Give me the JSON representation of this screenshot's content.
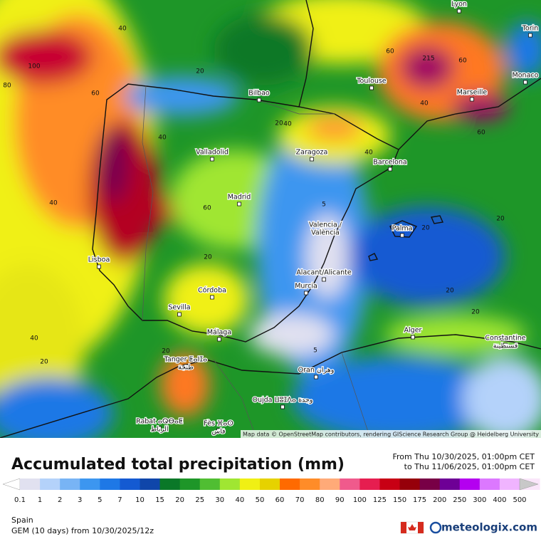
{
  "map": {
    "attribution": "Map data © OpenStreetMap contributors, rendering GIScience Research Group @ Heidelberg University",
    "cities": [
      {
        "lines": [
          "Lyon"
        ]
      },
      {
        "lines": [
          "Torin"
        ]
      },
      {
        "lines": [
          "Toulouse"
        ]
      },
      {
        "lines": [
          "Monaco"
        ]
      },
      {
        "lines": [
          "Bilbao"
        ]
      },
      {
        "lines": [
          "Marseille"
        ]
      },
      {
        "lines": [
          "Zaragoza"
        ]
      },
      {
        "lines": [
          "Barcelona"
        ]
      },
      {
        "lines": [
          "Valladolid"
        ]
      },
      {
        "lines": [
          "Madrid"
        ]
      },
      {
        "lines": [
          "Valencia /",
          "València"
        ]
      },
      {
        "lines": [
          "Palma"
        ]
      },
      {
        "lines": [
          "Lisboa"
        ]
      },
      {
        "lines": [
          "Alacant/Alicante"
        ]
      },
      {
        "lines": [
          "Murcia"
        ]
      },
      {
        "lines": [
          "Córdoba"
        ]
      },
      {
        "lines": [
          "Sevilla"
        ]
      },
      {
        "lines": [
          "Málaga"
        ]
      },
      {
        "lines": [
          "Alger"
        ]
      },
      {
        "lines": [
          "Constantine",
          "قسنطينة"
        ]
      },
      {
        "lines": [
          "Tanger ⵟⴰⵏⵊⴰ",
          "طنجة"
        ]
      },
      {
        "lines": [
          "Oran وهران"
        ]
      },
      {
        "lines": [
          "Oujda ⵡⵓⵊⴷⴰ وجدة"
        ]
      },
      {
        "lines": [
          "Rabat ⴰⵕⴱⴰⵟ",
          "الرباط"
        ]
      },
      {
        "lines": [
          "Fès ⴼⴰⵙ",
          "فاس"
        ]
      }
    ],
    "contour_labels": [
      40,
      100,
      80,
      60,
      40,
      20,
      40,
      60,
      20,
      20,
      40,
      20,
      5,
      5,
      20,
      20,
      20,
      20,
      40,
      40,
      60,
      60,
      60,
      40,
      20,
      215
    ]
  },
  "header": {
    "title": "Accumulated total precipitation (mm)",
    "from": "From Thu 10/30/2025, 01:00pm CET",
    "to": "to Thu 11/06/2025, 01:00pm CET"
  },
  "legend": {
    "labels": [
      0.1,
      1,
      2,
      3,
      5,
      7,
      10,
      15,
      20,
      25,
      30,
      40,
      50,
      60,
      70,
      80,
      90,
      100,
      125,
      150,
      175,
      200,
      250,
      300,
      400,
      500
    ],
    "colors": [
      "#ffffff",
      "#e1e1f0",
      "#b4d2fa",
      "#78b4f5",
      "#3c96f0",
      "#1e78e6",
      "#145ad2",
      "#0f46aa",
      "#0a7828",
      "#1e9628",
      "#50be32",
      "#a0e632",
      "#f0f014",
      "#e6d200",
      "#ff6a00",
      "#ff8c28",
      "#ffaa78",
      "#f05a8c",
      "#e61e50",
      "#c80014",
      "#96000a",
      "#780046",
      "#6e0096",
      "#b400f0",
      "#dc78ff",
      "#f0b4ff",
      "#fae6fa",
      "#c8c8c8"
    ]
  },
  "footer": {
    "region": "Spain",
    "model": "GEM (10 days) from 10/30/2025/12z",
    "brand": "meteologix.com"
  }
}
